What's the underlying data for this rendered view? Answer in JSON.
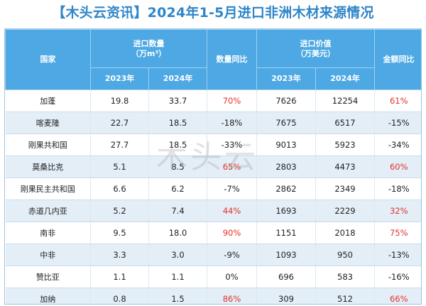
{
  "title": "【木头云资讯】2024年1-5月进口非洲木材来源情况",
  "watermark": "木头云",
  "headers": {
    "country": "国家",
    "qty_group": "进口数量",
    "qty_unit": "（万m³）",
    "qty_yoy": "数量同比",
    "value_group": "进口价值",
    "value_unit": "（万美元）",
    "value_yoy": "金额同比",
    "year_2023": "2023年",
    "year_2024": "2024年"
  },
  "colors": {
    "header_bg": "#4ea8e3",
    "positive": "#e0332c",
    "title": "#2f86c8",
    "alt_row": "#e4eef7"
  },
  "rows": [
    {
      "country": "加蓬",
      "q2023": "19.8",
      "q2024": "33.7",
      "qyoy": "70%",
      "v2023": "7626",
      "v2024": "12254",
      "vyoy": "61%",
      "qup": true,
      "vup": true
    },
    {
      "country": "喀麦隆",
      "q2023": "22.7",
      "q2024": "18.5",
      "qyoy": "-18%",
      "v2023": "7675",
      "v2024": "6517",
      "vyoy": "-15%",
      "qup": false,
      "vup": false
    },
    {
      "country": "刚果共和国",
      "q2023": "27.7",
      "q2024": "18.5",
      "qyoy": "-33%",
      "v2023": "9013",
      "v2024": "5923",
      "vyoy": "-34%",
      "qup": false,
      "vup": false
    },
    {
      "country": "莫桑比克",
      "q2023": "5.1",
      "q2024": "8.5",
      "qyoy": "65%",
      "v2023": "2803",
      "v2024": "4473",
      "vyoy": "60%",
      "qup": true,
      "vup": true
    },
    {
      "country": "刚果民主共和国",
      "q2023": "6.6",
      "q2024": "6.2",
      "qyoy": "-7%",
      "v2023": "2862",
      "v2024": "2349",
      "vyoy": "-18%",
      "qup": false,
      "vup": false
    },
    {
      "country": "赤道几内亚",
      "q2023": "5.2",
      "q2024": "7.4",
      "qyoy": "44%",
      "v2023": "1693",
      "v2024": "2229",
      "vyoy": "32%",
      "qup": true,
      "vup": true
    },
    {
      "country": "南非",
      "q2023": "9.5",
      "q2024": "18.0",
      "qyoy": "90%",
      "v2023": "1151",
      "v2024": "2018",
      "vyoy": "75%",
      "qup": true,
      "vup": true
    },
    {
      "country": "中非",
      "q2023": "3.3",
      "q2024": "3.0",
      "qyoy": "-9%",
      "v2023": "1093",
      "v2024": "950",
      "vyoy": "-13%",
      "qup": false,
      "vup": false
    },
    {
      "country": "赞比亚",
      "q2023": "1.1",
      "q2024": "1.1",
      "qyoy": "0%",
      "v2023": "696",
      "v2024": "583",
      "vyoy": "-16%",
      "qup": false,
      "vup": false
    },
    {
      "country": "加纳",
      "q2023": "0.8",
      "q2024": "1.5",
      "qyoy": "86%",
      "v2023": "309",
      "v2024": "512",
      "vyoy": "66%",
      "qup": true,
      "vup": true
    }
  ]
}
